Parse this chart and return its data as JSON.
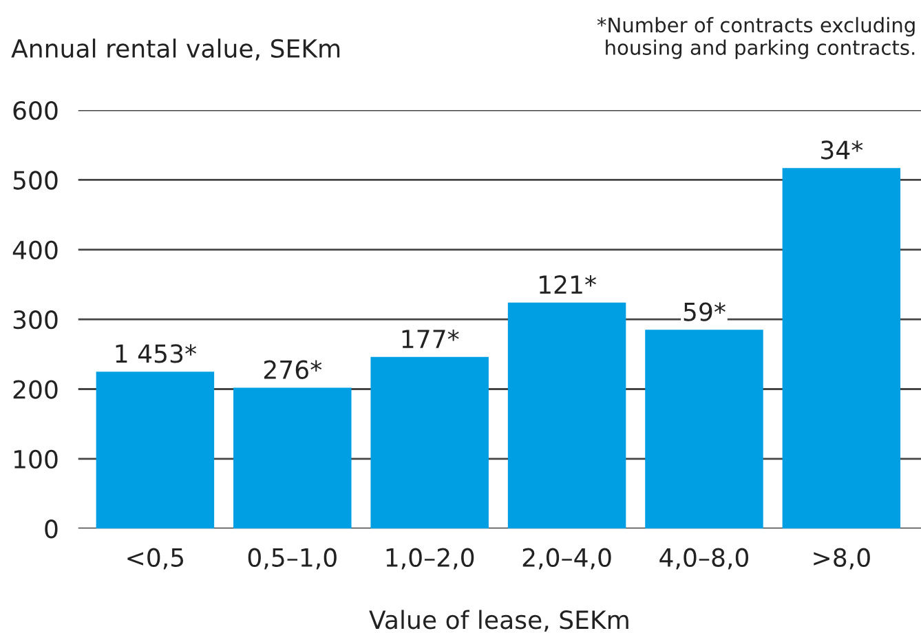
{
  "chart_data": {
    "type": "bar",
    "title": "Annual rental value, SEKm",
    "xlabel": "Value of lease, SEKm",
    "annotations": [
      "*Number of contracts excluding\nhousing and parking contracts.",
      {
        "text": "1 453*",
        "x": "<0,5",
        "y": 225
      },
      {
        "text": "276*",
        "x": "0,5–1,0",
        "y": 202
      },
      {
        "text": "177*",
        "x": "1,0–2,0",
        "y": 246
      },
      {
        "text": "121*",
        "x": "2,0–4,0",
        "y": 324
      },
      {
        "text": "59*",
        "x": "4,0–8,0",
        "y": 285
      },
      {
        "text": "34*",
        "x": ">8,0",
        "y": 517
      }
    ],
    "categories": [
      "<0,5",
      "0,5–1,0",
      "1,0–2,0",
      "2,0–4,0",
      "4,0–8,0",
      ">8,0"
    ],
    "values": [
      225,
      202,
      246,
      324,
      285,
      517
    ],
    "color": "#009fe3",
    "ylim": [
      0,
      600
    ],
    "yticks": [
      0,
      100,
      200,
      300,
      400,
      500,
      600
    ],
    "grid": "y",
    "legend": false
  }
}
